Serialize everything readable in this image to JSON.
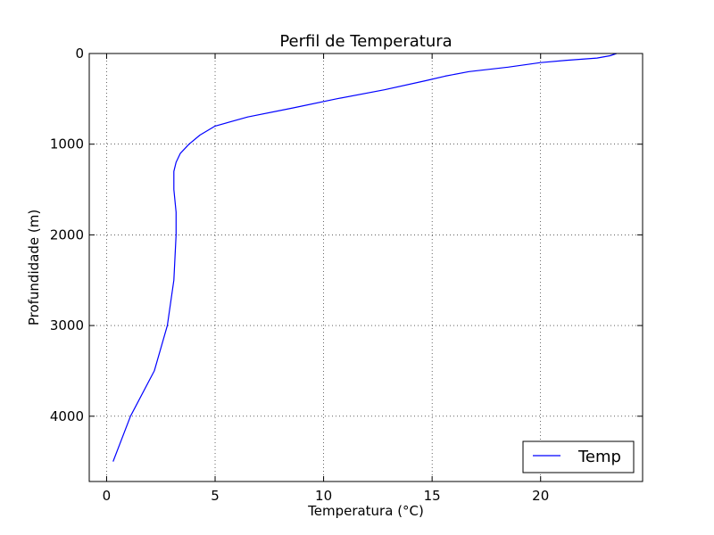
{
  "chart_data": {
    "type": "line",
    "title": "Perfil de Temperatura",
    "xlabel": "Temperatura (°C)",
    "ylabel": "Profundidade (m)",
    "xlim": [
      -0.8,
      24.7
    ],
    "ylim": [
      4720,
      0
    ],
    "y_inverted": true,
    "grid": true,
    "legend_position": "lower-right",
    "x_ticks": [
      0,
      5,
      10,
      15,
      20
    ],
    "y_ticks": [
      0,
      1000,
      2000,
      3000,
      4000
    ],
    "series": [
      {
        "name": "Temp",
        "color": "#0000ff",
        "points": [
          {
            "x": 23.5,
            "y": 0
          },
          {
            "x": 23.2,
            "y": 25
          },
          {
            "x": 22.6,
            "y": 50
          },
          {
            "x": 21.2,
            "y": 75
          },
          {
            "x": 20.0,
            "y": 100
          },
          {
            "x": 18.5,
            "y": 150
          },
          {
            "x": 16.7,
            "y": 200
          },
          {
            "x": 15.6,
            "y": 250
          },
          {
            "x": 14.7,
            "y": 300
          },
          {
            "x": 12.8,
            "y": 400
          },
          {
            "x": 10.6,
            "y": 500
          },
          {
            "x": 8.6,
            "y": 600
          },
          {
            "x": 6.5,
            "y": 700
          },
          {
            "x": 5.0,
            "y": 800
          },
          {
            "x": 4.3,
            "y": 900
          },
          {
            "x": 3.8,
            "y": 1000
          },
          {
            "x": 3.4,
            "y": 1100
          },
          {
            "x": 3.2,
            "y": 1200
          },
          {
            "x": 3.1,
            "y": 1300
          },
          {
            "x": 3.1,
            "y": 1400
          },
          {
            "x": 3.1,
            "y": 1500
          },
          {
            "x": 3.2,
            "y": 1750
          },
          {
            "x": 3.2,
            "y": 2000
          },
          {
            "x": 3.1,
            "y": 2500
          },
          {
            "x": 2.8,
            "y": 3000
          },
          {
            "x": 2.2,
            "y": 3500
          },
          {
            "x": 1.1,
            "y": 4000
          },
          {
            "x": 0.3,
            "y": 4500
          }
        ]
      }
    ]
  }
}
